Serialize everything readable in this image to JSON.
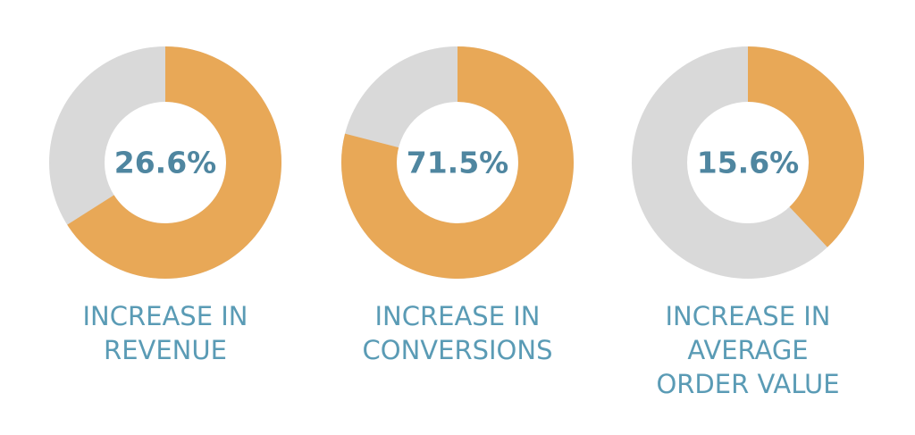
{
  "stats": [
    {
      "value_label": "26.6%",
      "ring_share": 66,
      "caption": [
        "INCREASE IN",
        "REVENUE"
      ]
    },
    {
      "value_label": "71.5%",
      "ring_share": 79,
      "caption": [
        "INCREASE IN",
        "CONVERSIONS"
      ]
    },
    {
      "value_label": "15.6%",
      "ring_share": 38,
      "caption": [
        "INCREASE IN",
        "AVERAGE",
        "ORDER VALUE"
      ]
    }
  ],
  "ring_color": "#e8a857",
  "track_color": "#d9d9d9"
}
